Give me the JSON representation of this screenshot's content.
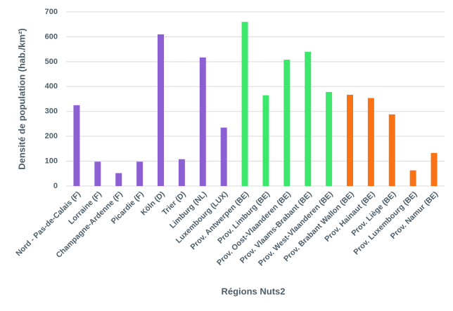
{
  "chart_data": {
    "type": "bar",
    "xlabel": "Régions Nuts2",
    "ylabel": "Densité de population (hab./km²)",
    "categories": [
      "Nord - Pas-de-Calais (F)",
      "Lorraine (F)",
      "Champagne-Ardenne (F)",
      "Picardie (F)",
      "Köln (D)",
      "Trier (D)",
      "Limburg (NL)",
      "Luxembourg (LUX)",
      "Prov. Antwerpen (BE)",
      "Prov. Limburg (BE)",
      "Prov. Oost-Vlaanderen (BE)",
      "Prov. Vlaams-Brabant (BE)",
      "Prov. West-Vlaanderen (BE)",
      "Prov. Brabant Wallon (BE)",
      "Prov. Hainaut (BE)",
      "Prov. Liège (BE)",
      "Prov. Luxembourg (BE)",
      "Prov. Namur (BE)"
    ],
    "values": [
      325,
      98,
      52,
      98,
      610,
      108,
      517,
      235,
      660,
      365,
      508,
      540,
      378,
      367,
      354,
      288,
      63,
      133
    ],
    "colors": [
      "#8c5fd3",
      "#8c5fd3",
      "#8c5fd3",
      "#8c5fd3",
      "#8c5fd3",
      "#8c5fd3",
      "#8c5fd3",
      "#8c5fd3",
      "#3ce86c",
      "#3ce86c",
      "#3ce86c",
      "#3ce86c",
      "#3ce86c",
      "#f97316",
      "#f97316",
      "#f97316",
      "#f97316",
      "#f97316"
    ],
    "ylim": [
      0,
      700
    ],
    "yticks": [
      0,
      100,
      200,
      300,
      400,
      500,
      600,
      700
    ],
    "grid": true
  }
}
